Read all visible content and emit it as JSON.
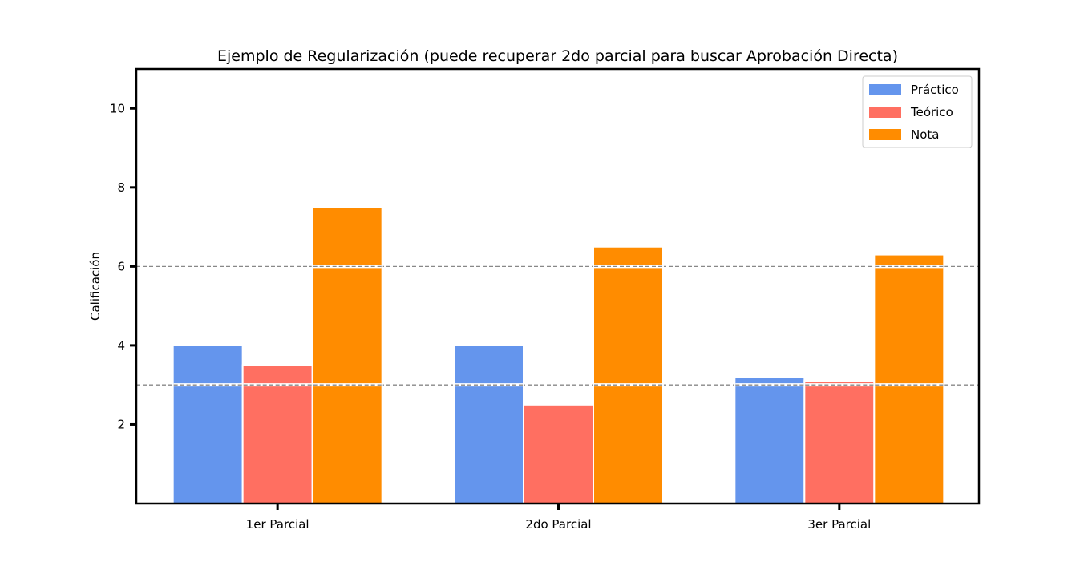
{
  "chart_data": {
    "type": "bar",
    "title": "Ejemplo de Regularización (puede recuperar 2do parcial para buscar Aprobación Directa)",
    "xlabel": "",
    "ylabel": "Calificación",
    "categories": [
      "1er Parcial",
      "2do Parcial",
      "3er Parcial"
    ],
    "series": [
      {
        "name": "Práctico",
        "values": [
          4.0,
          4.0,
          3.2
        ],
        "color": "#6495ED"
      },
      {
        "name": "Teórico",
        "values": [
          3.5,
          2.5,
          3.1
        ],
        "color": "#FF6F61"
      },
      {
        "name": "Nota",
        "values": [
          7.5,
          6.5,
          6.3
        ],
        "color": "#FF8C00"
      }
    ],
    "ylim": [
      0,
      11
    ],
    "yticks": [
      2,
      4,
      6,
      8,
      10
    ],
    "reference_lines": [
      3,
      6
    ],
    "reference_line_color": "#888888",
    "grid": false,
    "legend_position": "top-right"
  }
}
